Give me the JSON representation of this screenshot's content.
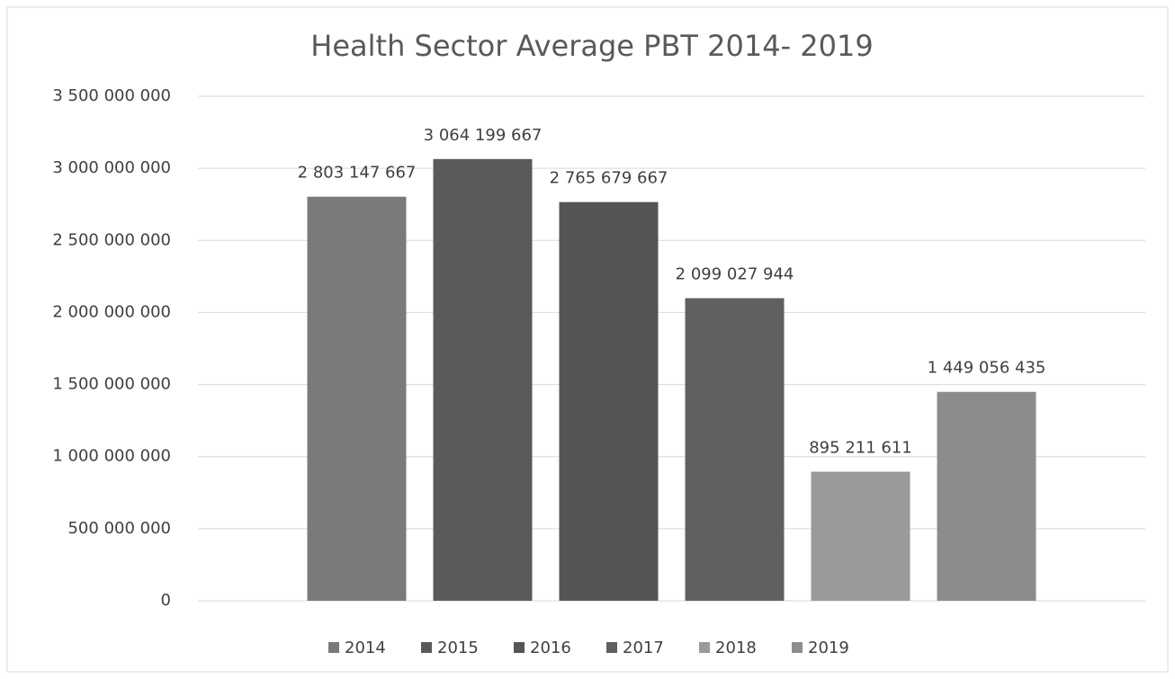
{
  "chart_data": {
    "type": "bar",
    "title": "Health Sector Average PBT 2014- 2019",
    "series": [
      {
        "name": "2014",
        "color": "#7a7a7a",
        "values": [
          2803147667
        ],
        "value_labels": [
          "2 803 147 667"
        ]
      },
      {
        "name": "2015",
        "color": "#5a5a5a",
        "values": [
          3064199667
        ],
        "value_labels": [
          "3 064 199 667"
        ]
      },
      {
        "name": "2016",
        "color": "#555555",
        "values": [
          2765679667
        ],
        "value_labels": [
          "2 765 679 667"
        ]
      },
      {
        "name": "2017",
        "color": "#606060",
        "values": [
          2099027944
        ],
        "value_labels": [
          "2 099 027 944"
        ]
      },
      {
        "name": "2018",
        "color": "#9a9a9a",
        "values": [
          895211611
        ],
        "value_labels": [
          "895 211 611"
        ]
      },
      {
        "name": "2019",
        "color": "#8c8c8c",
        "values": [
          1449056435
        ],
        "value_labels": [
          "1 449 056 435"
        ]
      }
    ],
    "ylim": [
      0,
      3500000000
    ],
    "yticks": [
      0,
      {
        "value": 500000000,
        "label": "500 000 000"
      },
      {
        "value": 1000000000,
        "label": "1 000 000 000"
      },
      {
        "value": 1500000000,
        "label": "1 500 000 000"
      },
      {
        "value": 2000000000,
        "label": "2 000 000 000"
      },
      {
        "value": 2500000000,
        "label": "2 500 000 000"
      },
      {
        "value": 3000000000,
        "label": "3 000 000 000"
      },
      {
        "value": 3500000000,
        "label": "3 500 000 000"
      }
    ],
    "grid": true,
    "legend": "bottom"
  }
}
